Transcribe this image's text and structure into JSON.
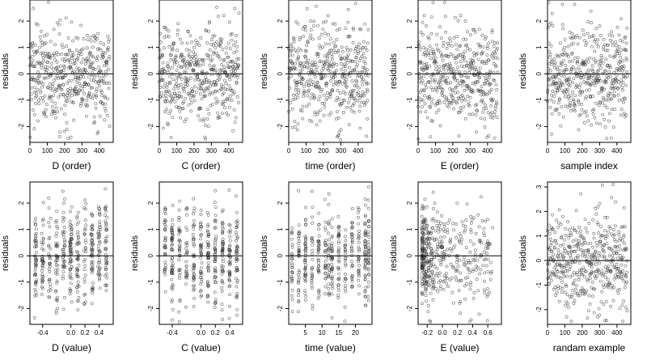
{
  "figure": {
    "colors": {
      "point": "#333333",
      "zero_line": "#000000",
      "frame": "#000000"
    }
  },
  "chart_data": [
    {
      "type": "scatter",
      "xlabel": "D (order)",
      "ylabel": "residuals",
      "xlim": [
        0,
        480
      ],
      "ylim": [
        -2.6,
        2.8
      ],
      "xticks": [
        0,
        100,
        200,
        300,
        400
      ],
      "xtick_labels": [
        "0",
        "100",
        "200",
        "300",
        "400"
      ],
      "yticks": [
        -2,
        -1,
        0,
        1,
        2
      ],
      "ytick_labels": [
        "-2",
        "-1",
        "0",
        "1",
        "2"
      ],
      "zero_line": true,
      "marker": "open-circle",
      "n_points": 460
    },
    {
      "type": "scatter",
      "xlabel": "C (order)",
      "ylabel": "residuals",
      "xlim": [
        0,
        480
      ],
      "ylim": [
        -2.6,
        2.8
      ],
      "xticks": [
        0,
        100,
        200,
        300,
        400
      ],
      "xtick_labels": [
        "0",
        "100",
        "200",
        "300",
        "400"
      ],
      "yticks": [
        -2,
        -1,
        0,
        1,
        2
      ],
      "ytick_labels": [
        "-2",
        "-1",
        "0",
        "1",
        "2"
      ],
      "zero_line": true,
      "marker": "open-circle",
      "n_points": 460
    },
    {
      "type": "scatter",
      "xlabel": "time (order)",
      "ylabel": "residuals",
      "xlim": [
        0,
        480
      ],
      "ylim": [
        -2.6,
        2.8
      ],
      "xticks": [
        0,
        100,
        200,
        300,
        400
      ],
      "xtick_labels": [
        "0",
        "100",
        "200",
        "300",
        "400"
      ],
      "yticks": [
        -2,
        -1,
        0,
        1,
        2
      ],
      "ytick_labels": [
        "-2",
        "-1",
        "0",
        "1",
        "2"
      ],
      "zero_line": true,
      "marker": "open-circle",
      "n_points": 460
    },
    {
      "type": "scatter",
      "xlabel": "E (order)",
      "ylabel": "residuals",
      "xlim": [
        0,
        480
      ],
      "ylim": [
        -2.6,
        2.8
      ],
      "xticks": [
        0,
        100,
        200,
        300,
        400
      ],
      "xtick_labels": [
        "0",
        "100",
        "200",
        "300",
        "400"
      ],
      "yticks": [
        -2,
        -1,
        0,
        1,
        2
      ],
      "ytick_labels": [
        "-2",
        "-1",
        "0",
        "1",
        "2"
      ],
      "zero_line": true,
      "marker": "open-circle",
      "n_points": 460
    },
    {
      "type": "scatter",
      "xlabel": "sample index",
      "ylabel": "residuals",
      "xlim": [
        0,
        480
      ],
      "ylim": [
        -2.6,
        2.8
      ],
      "xticks": [
        0,
        100,
        200,
        300,
        400
      ],
      "xtick_labels": [
        "0",
        "100",
        "200",
        "300",
        "400"
      ],
      "yticks": [
        -2,
        -1,
        0,
        1,
        2
      ],
      "ytick_labels": [
        "-2",
        "-1",
        "0",
        "1",
        "2"
      ],
      "zero_line": true,
      "marker": "open-circle",
      "n_points": 460
    },
    {
      "type": "scatter",
      "xlabel": "D (value)",
      "ylabel": "residuals",
      "xlim": [
        -0.58,
        0.6
      ],
      "ylim": [
        -2.6,
        2.8
      ],
      "xticks": [
        -0.4,
        0.0,
        0.2,
        0.4
      ],
      "xtick_labels": [
        "-0.4",
        "0.0",
        "0.2",
        "0.4"
      ],
      "yticks": [
        -2,
        -1,
        0,
        1,
        2
      ],
      "ytick_labels": [
        "-2",
        "-1",
        "0",
        "1",
        "2"
      ],
      "zero_line": true,
      "marker": "open-circle",
      "n_points": 460
    },
    {
      "type": "scatter",
      "xlabel": "C (value)",
      "ylabel": "residuals",
      "xlim": [
        -0.58,
        0.58
      ],
      "ylim": [
        -2.6,
        2.8
      ],
      "xticks": [
        -0.4,
        0.0,
        0.2,
        0.4
      ],
      "xtick_labels": [
        "-0.4",
        "0.0",
        "0.2",
        "0.4"
      ],
      "yticks": [
        -2,
        -1,
        0,
        1,
        2
      ],
      "ytick_labels": [
        "-2",
        "-1",
        "0",
        "1",
        "2"
      ],
      "zero_line": true,
      "marker": "open-circle",
      "n_points": 460
    },
    {
      "type": "scatter",
      "xlabel": "time (value)",
      "ylabel": "residuals",
      "xlim": [
        0,
        25
      ],
      "ylim": [
        -2.6,
        2.8
      ],
      "xticks": [
        5,
        10,
        15,
        20
      ],
      "xtick_labels": [
        "5",
        "10",
        "15",
        "20"
      ],
      "yticks": [
        -2,
        -1,
        0,
        1,
        2
      ],
      "ytick_labels": [
        "-2",
        "-1",
        "0",
        "1",
        "2"
      ],
      "zero_line": true,
      "marker": "open-circle",
      "n_points": 460
    },
    {
      "type": "scatter",
      "xlabel": "E (value)",
      "ylabel": "residuals",
      "xlim": [
        -0.32,
        0.78
      ],
      "ylim": [
        -2.6,
        2.8
      ],
      "xticks": [
        -0.2,
        0.0,
        0.2,
        0.4,
        0.6
      ],
      "xtick_labels": [
        "-0.2",
        "0.0",
        "0.2",
        "0.4",
        "0.6"
      ],
      "yticks": [
        -2,
        -1,
        0,
        1,
        2
      ],
      "ytick_labels": [
        "-2",
        "-1",
        "0",
        "1",
        "2"
      ],
      "zero_line": true,
      "marker": "open-circle",
      "n_points": 460
    },
    {
      "type": "scatter",
      "xlabel": "randam example",
      "ylabel": "residuals",
      "xlim": [
        0,
        480
      ],
      "ylim": [
        -2.6,
        3.2
      ],
      "xticks": [
        0,
        100,
        200,
        300,
        400
      ],
      "xtick_labels": [
        "0",
        "100",
        "200",
        "300",
        "400"
      ],
      "yticks": [
        -2,
        -1,
        0,
        1,
        2,
        3
      ],
      "ytick_labels": [
        "-2",
        "-1",
        "0",
        "1",
        "2",
        "3"
      ],
      "zero_line": true,
      "marker": "open-circle",
      "n_points": 460
    }
  ]
}
